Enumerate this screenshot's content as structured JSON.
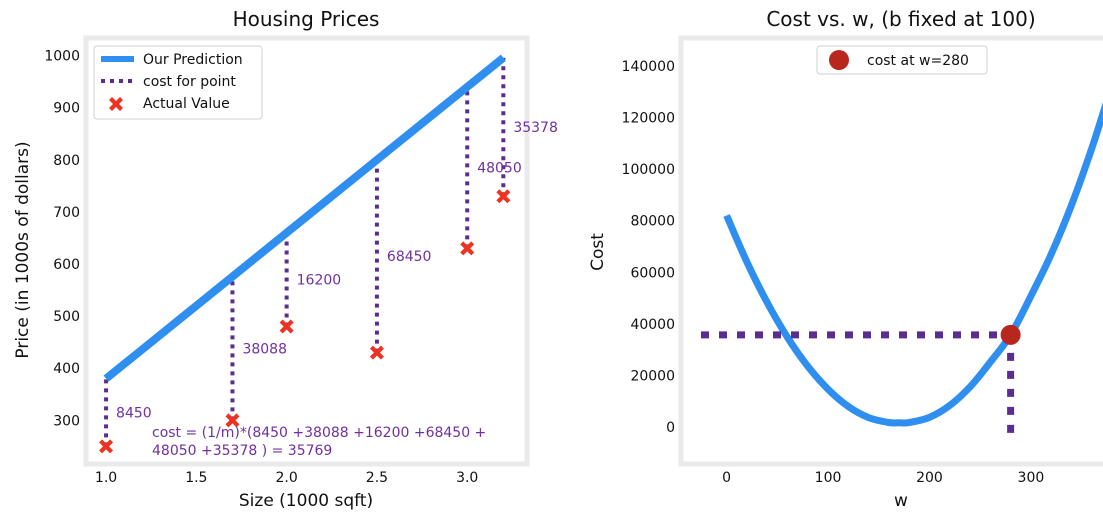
{
  "chart_data": [
    {
      "type": "line",
      "title": "Housing Prices",
      "xlabel": "Size (1000 sqft)",
      "ylabel": "Price (in 1000s of dollars)",
      "xlim": [
        0.9,
        3.32
      ],
      "ylim": [
        220,
        1030
      ],
      "xticks": [
        1.0,
        1.5,
        2.0,
        2.5,
        3.0
      ],
      "xtick_labels": [
        "1.0",
        "1.5",
        "2.0",
        "2.5",
        "3.0"
      ],
      "yticks": [
        300,
        400,
        500,
        600,
        700,
        800,
        900,
        1000
      ],
      "ytick_labels": [
        "300",
        "400",
        "500",
        "600",
        "700",
        "800",
        "900",
        "1000"
      ],
      "legend": [
        "Our Prediction",
        "cost for point",
        "Actual Value"
      ],
      "legend_position": "upper-left",
      "prediction": {
        "x": [
          1.0,
          3.2
        ],
        "y": [
          380,
          996
        ]
      },
      "points": [
        {
          "x": 1.0,
          "y": 250,
          "predicted": 380,
          "cost_label": "8450"
        },
        {
          "x": 1.7,
          "y": 300,
          "predicted": 576,
          "cost_label": "38088"
        },
        {
          "x": 2.0,
          "y": 480,
          "predicted": 660,
          "cost_label": "16200"
        },
        {
          "x": 2.5,
          "y": 430,
          "predicted": 800,
          "cost_label": "68450"
        },
        {
          "x": 3.0,
          "y": 630,
          "predicted": 940,
          "cost_label": "48050"
        },
        {
          "x": 3.2,
          "y": 730,
          "predicted": 996,
          "cost_label": "35378"
        }
      ],
      "annotation_lines": [
        "cost = (1/m)*(8450 +38088 +16200 +68450 +",
        "48050 +35378 ) = 35769"
      ],
      "colors": {
        "prediction": "#2e8ff0",
        "cost": "#5c2d91",
        "actual": "#ee3322",
        "annotation": "#7030a0",
        "frame": "#eaeaea"
      }
    },
    {
      "type": "line",
      "title": "Cost vs. w, (b fixed at 100)",
      "xlabel": "w",
      "ylabel": "Cost",
      "xlim": [
        -43,
        377
      ],
      "ylim": [
        -13500,
        150000
      ],
      "xticks": [
        0,
        100,
        200,
        300
      ],
      "xtick_labels": [
        "0",
        "100",
        "200",
        "300"
      ],
      "yticks": [
        0,
        20000,
        40000,
        60000,
        80000,
        100000,
        120000,
        140000
      ],
      "ytick_labels": [
        "0",
        "20000",
        "40000",
        "60000",
        "80000",
        "100000",
        "120000",
        "140000"
      ],
      "legend": [
        "cost at w=280"
      ],
      "legend_position": "upper-center",
      "curve": {
        "x": [
          0,
          20,
          40,
          60,
          80,
          100,
          120,
          140,
          160,
          170,
          180,
          200,
          220,
          240,
          260,
          280,
          300,
          320,
          340,
          360,
          377
        ],
        "y": [
          82000,
          64000,
          48300,
          34800,
          23600,
          14700,
          8000,
          3700,
          1800,
          1700,
          1800,
          3800,
          8400,
          15600,
          25200,
          35769,
          50800,
          67000,
          86000,
          108000,
          129000
        ]
      },
      "highlight": {
        "w": 280,
        "cost": 35769
      },
      "colors": {
        "curve": "#2e8ff0",
        "dashed": "#5c2d91",
        "point": "#b8271b",
        "frame": "#eaeaea"
      }
    }
  ]
}
